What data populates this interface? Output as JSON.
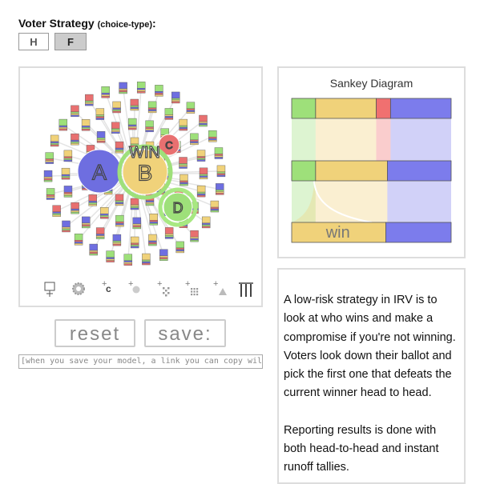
{
  "strategy": {
    "label": "Voter Strategy",
    "sublabel": "(choice-type)",
    "colon": ":",
    "options": [
      "H",
      "F"
    ],
    "selected": "F"
  },
  "simulation": {
    "candidates": [
      {
        "label": "A",
        "color": "#6e6ee0"
      },
      {
        "label": "B",
        "color": "#f0d27a"
      },
      {
        "label": "C",
        "color": "#e87070"
      },
      {
        "label": "D",
        "color": "#9ee07a"
      }
    ],
    "winner_label": "WIN",
    "tools": [
      "voter-tool-icon",
      "gear-icon",
      "add-candidate-icon",
      "add-voter-icon",
      "add-crowd-icon",
      "add-grid-icon",
      "add-triangle-icon",
      "columns-icon"
    ],
    "tool_glyphs": {
      "add_candidate": "c"
    }
  },
  "buttons": {
    "reset": "reset",
    "save": "save:"
  },
  "link_field": {
    "placeholder": "[when you save your model, a link you can copy will show up here]"
  },
  "sankey": {
    "title": "Sankey Diagram",
    "win_label": "win",
    "colors": {
      "A": "#7c7cec",
      "B": "#f0d27a",
      "C": "#f07070",
      "D": "#9ee07a"
    }
  },
  "description": {
    "text": "A low-risk strategy in IRV is to look at who wins and make a compromise if you're not winning. Voters look down their ballot and pick the first one that defeats the current winner head to head.\n\nReporting results is done with both head-to-head and instant runoff tallies."
  }
}
